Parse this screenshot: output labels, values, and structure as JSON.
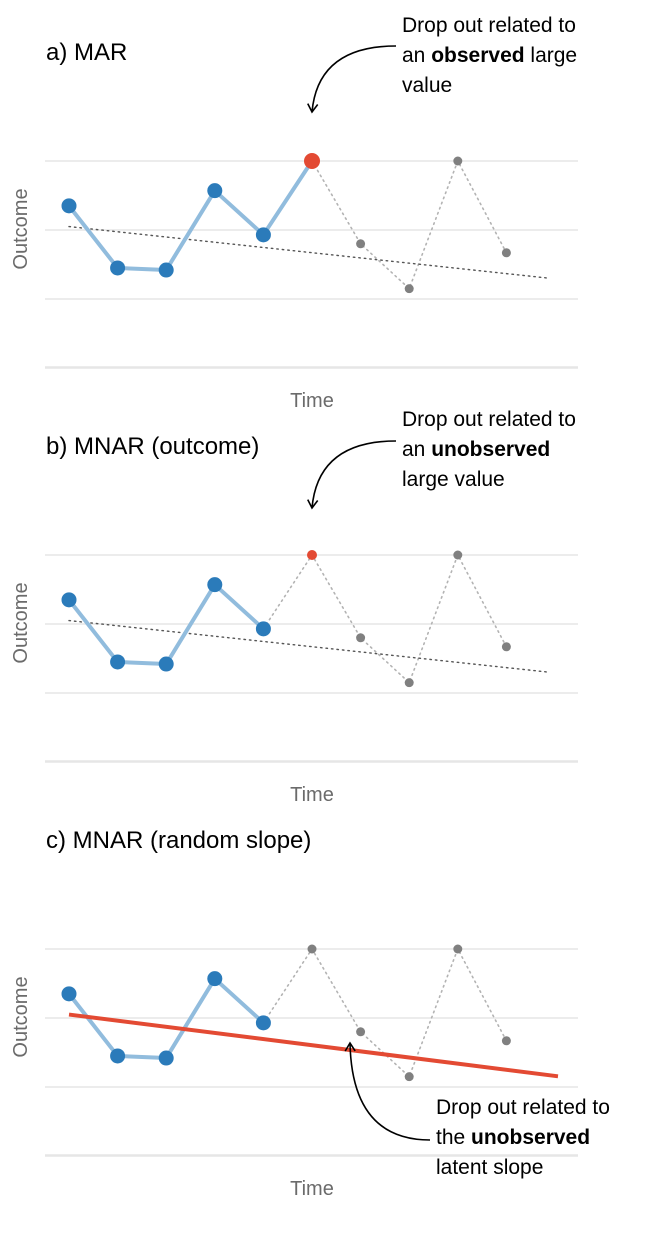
{
  "chart_data": [
    {
      "type": "line",
      "title": "a) MAR",
      "xlabel": "Time",
      "ylabel": "Outcome",
      "x": [
        1,
        2,
        3,
        4,
        5,
        6,
        7,
        8,
        9,
        10
      ],
      "ylim": [
        -3,
        3
      ],
      "grid": true,
      "series": [
        {
          "role": "observed",
          "color": "#2b7bba",
          "line_color": "#91bcdd",
          "x": [
            1,
            2,
            3,
            4,
            5
          ],
          "values": [
            0.35,
            -0.55,
            -0.58,
            0.57,
            -0.07
          ]
        },
        {
          "role": "dropout-point",
          "color": "#e34a33",
          "x": [
            6
          ],
          "values": [
            1.0
          ]
        },
        {
          "role": "unobserved",
          "color": "#808080",
          "x": [
            7,
            8,
            9,
            10
          ],
          "values": [
            -0.2,
            -0.85,
            1.0,
            -0.33
          ]
        },
        {
          "role": "trend",
          "style": "dotted",
          "color": "#555555",
          "x": [
            1,
            11
          ],
          "values": [
            0.05,
            -0.7
          ]
        }
      ],
      "annotation": {
        "lines": [
          [
            {
              "text": "Drop out related to",
              "bold": false
            }
          ],
          [
            {
              "text": "an ",
              "bold": false
            },
            {
              "text": "observed",
              "bold": true
            },
            {
              "text": " large",
              "bold": false
            }
          ],
          [
            {
              "text": "value",
              "bold": false
            }
          ]
        ],
        "target": "dropout-point"
      }
    },
    {
      "type": "line",
      "title": "b) MNAR (outcome)",
      "xlabel": "Time",
      "ylabel": "Outcome",
      "x": [
        1,
        2,
        3,
        4,
        5,
        6,
        7,
        8,
        9,
        10
      ],
      "ylim": [
        -3,
        3
      ],
      "grid": true,
      "series": [
        {
          "role": "observed",
          "color": "#2b7bba",
          "line_color": "#91bcdd",
          "x": [
            1,
            2,
            3,
            4,
            5
          ],
          "values": [
            0.35,
            -0.55,
            -0.58,
            0.57,
            -0.07
          ]
        },
        {
          "role": "dropout-point",
          "color": "#e34a33",
          "size": "small",
          "x": [
            6
          ],
          "values": [
            1.0
          ]
        },
        {
          "role": "unobserved",
          "color": "#808080",
          "x": [
            6,
            7,
            8,
            9,
            10
          ],
          "values": [
            1.0,
            -0.2,
            -0.85,
            1.0,
            -0.33
          ]
        },
        {
          "role": "trend",
          "style": "dotted",
          "color": "#555555",
          "x": [
            1,
            11
          ],
          "values": [
            0.05,
            -0.7
          ]
        }
      ],
      "annotation": {
        "lines": [
          [
            {
              "text": "Drop out related to",
              "bold": false
            }
          ],
          [
            {
              "text": "an ",
              "bold": false
            },
            {
              "text": "unobserved",
              "bold": true
            }
          ],
          [
            {
              "text": "large value",
              "bold": false
            }
          ]
        ],
        "target": "dropout-point"
      }
    },
    {
      "type": "line",
      "title": "c) MNAR (random slope)",
      "xlabel": "Time",
      "ylabel": "Outcome",
      "x": [
        1,
        2,
        3,
        4,
        5,
        6,
        7,
        8,
        9,
        10
      ],
      "ylim": [
        -3,
        3
      ],
      "grid": true,
      "series": [
        {
          "role": "observed",
          "color": "#2b7bba",
          "line_color": "#91bcdd",
          "x": [
            1,
            2,
            3,
            4,
            5
          ],
          "values": [
            0.35,
            -0.55,
            -0.58,
            0.57,
            -0.07
          ]
        },
        {
          "role": "unobserved",
          "color": "#808080",
          "x": [
            6,
            7,
            8,
            9,
            10
          ],
          "values": [
            1.0,
            -0.2,
            -0.85,
            1.0,
            -0.33
          ]
        },
        {
          "role": "latent-slope",
          "style": "solid",
          "color": "#e34a33",
          "x": [
            1,
            11
          ],
          "values": [
            0.05,
            -0.7
          ]
        }
      ],
      "annotation": {
        "lines": [
          [
            {
              "text": "Drop out related to",
              "bold": false
            }
          ],
          [
            {
              "text": "the ",
              "bold": false
            },
            {
              "text": "unobserved",
              "bold": true
            }
          ],
          [
            {
              "text": "latent slope",
              "bold": false
            }
          ]
        ],
        "target": "latent-slope"
      }
    }
  ]
}
